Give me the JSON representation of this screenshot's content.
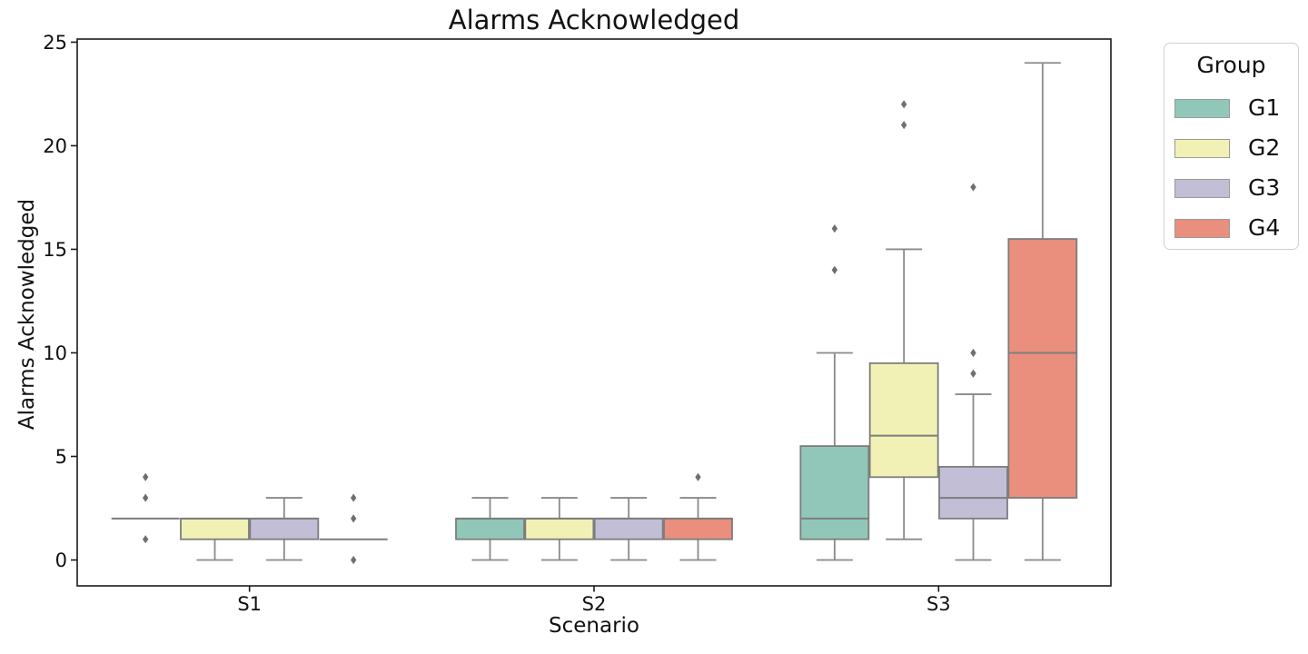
{
  "chart_data": {
    "type": "box",
    "title": "Alarms Acknowledged",
    "xlabel": "Scenario",
    "ylabel": "Alarms Acknowledged",
    "categories": [
      "S1",
      "S2",
      "S3"
    ],
    "yticks": [
      "0",
      "5",
      "10",
      "15",
      "20",
      "25"
    ],
    "ylim": [
      -1.25,
      25.15
    ],
    "grid": false,
    "legend": {
      "title": "Group",
      "position": "outside-upper-right",
      "items": [
        {
          "label": "G1",
          "color": "#90c7b8"
        },
        {
          "label": "G2",
          "color": "#f1f1b5"
        },
        {
          "label": "G3",
          "color": "#c1bed6"
        },
        {
          "label": "G4",
          "color": "#ea8e7e"
        }
      ]
    },
    "style": {
      "box_edge_color": "#7d7d7d",
      "whisker_color": "#8a8a8a",
      "flier_color": "#6f6f6f",
      "spine_color": "#1a1a1a"
    },
    "series": [
      {
        "name": "G1",
        "color": "#90c7b8",
        "boxes": [
          {
            "category": "S1",
            "whislo": 2,
            "q1": 2,
            "med": 2,
            "q3": 2,
            "whishi": 2,
            "fliers": [
              1,
              3,
              4
            ]
          },
          {
            "category": "S2",
            "whislo": 0,
            "q1": 1,
            "med": 2,
            "q3": 2,
            "whishi": 3,
            "fliers": []
          },
          {
            "category": "S3",
            "whislo": 0,
            "q1": 1,
            "med": 2,
            "q3": 5.5,
            "whishi": 10,
            "fliers": [
              14,
              16
            ]
          }
        ]
      },
      {
        "name": "G2",
        "color": "#f1f1b5",
        "boxes": [
          {
            "category": "S1",
            "whislo": 0,
            "q1": 1,
            "med": 2,
            "q3": 2,
            "whishi": 2,
            "fliers": []
          },
          {
            "category": "S2",
            "whislo": 0,
            "q1": 1,
            "med": 2,
            "q3": 2,
            "whishi": 3,
            "fliers": []
          },
          {
            "category": "S3",
            "whislo": 1,
            "q1": 4,
            "med": 6,
            "q3": 9.5,
            "whishi": 15,
            "fliers": [
              21,
              22
            ]
          }
        ]
      },
      {
        "name": "G3",
        "color": "#c1bed6",
        "boxes": [
          {
            "category": "S1",
            "whislo": 0,
            "q1": 1,
            "med": 2,
            "q3": 2,
            "whishi": 3,
            "fliers": []
          },
          {
            "category": "S2",
            "whislo": 0,
            "q1": 1,
            "med": 2,
            "q3": 2,
            "whishi": 3,
            "fliers": []
          },
          {
            "category": "S3",
            "whislo": 0,
            "q1": 2,
            "med": 3,
            "q3": 4.5,
            "whishi": 8,
            "fliers": [
              9,
              10,
              18
            ]
          }
        ]
      },
      {
        "name": "G4",
        "color": "#ea8e7e",
        "boxes": [
          {
            "category": "S1",
            "whislo": 1,
            "q1": 1,
            "med": 1,
            "q3": 1,
            "whishi": 1,
            "fliers": [
              0,
              2,
              3
            ]
          },
          {
            "category": "S2",
            "whislo": 0,
            "q1": 1,
            "med": 2,
            "q3": 2,
            "whishi": 3,
            "fliers": [
              4
            ]
          },
          {
            "category": "S3",
            "whislo": 0,
            "q1": 3,
            "med": 10,
            "q3": 15.5,
            "whishi": 24,
            "fliers": []
          }
        ]
      }
    ]
  }
}
